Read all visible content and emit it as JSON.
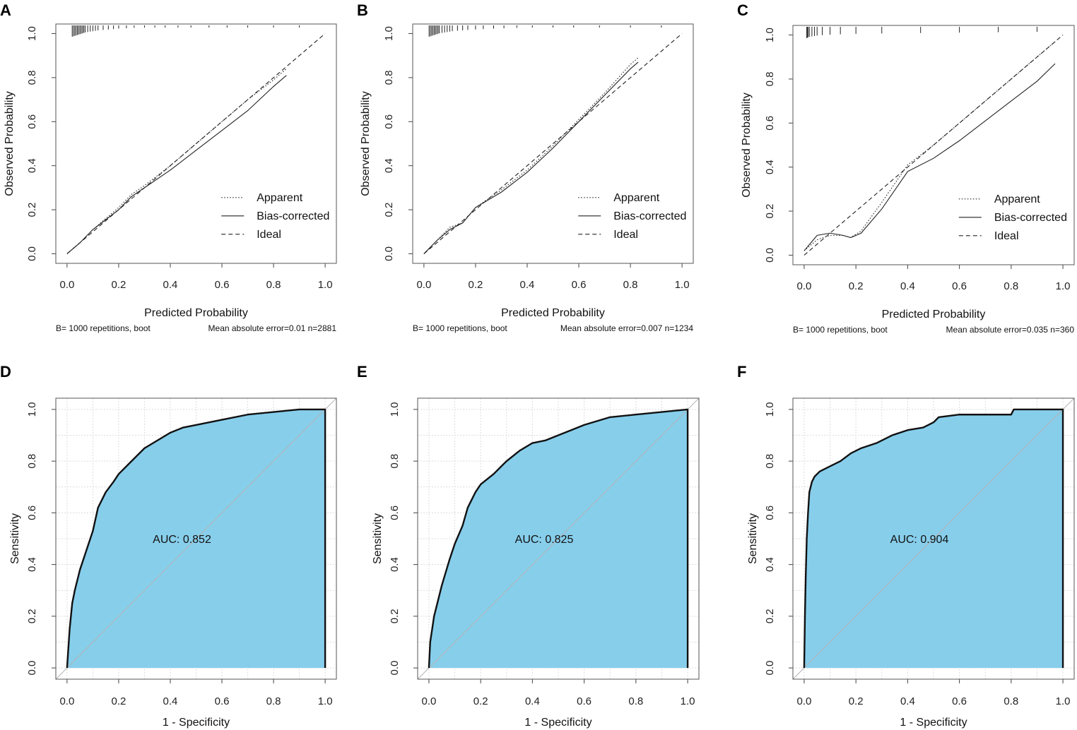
{
  "chart_data": [
    {
      "panel": "A",
      "type": "line",
      "xlabel": "Predicted Probability",
      "ylabel": "Observed Probability",
      "xlim": [
        0,
        1
      ],
      "ylim": [
        0,
        1
      ],
      "ticks": [
        "0.0",
        "0.2",
        "0.4",
        "0.6",
        "0.8",
        "1.0"
      ],
      "legend": [
        "Apparent",
        "Bias-corrected",
        "Ideal"
      ],
      "footer_left": "B= 1000 repetitions, boot",
      "footer_right": "Mean absolute error=0.01 n=2881",
      "series": [
        {
          "name": "Apparent",
          "style": "dotted",
          "x": [
            0,
            0.05,
            0.1,
            0.2,
            0.25,
            0.3,
            0.4,
            0.5,
            0.6,
            0.7,
            0.8,
            0.85
          ],
          "y": [
            0,
            0.05,
            0.11,
            0.21,
            0.27,
            0.31,
            0.4,
            0.5,
            0.6,
            0.7,
            0.79,
            0.84
          ]
        },
        {
          "name": "Bias-corrected",
          "style": "solid",
          "x": [
            0,
            0.05,
            0.1,
            0.2,
            0.25,
            0.3,
            0.4,
            0.5,
            0.6,
            0.7,
            0.8,
            0.85
          ],
          "y": [
            0,
            0.05,
            0.11,
            0.2,
            0.26,
            0.3,
            0.38,
            0.47,
            0.56,
            0.65,
            0.76,
            0.81
          ]
        },
        {
          "name": "Ideal",
          "style": "dashed",
          "x": [
            0,
            1
          ],
          "y": [
            0,
            1
          ]
        }
      ],
      "rug": [
        0.02,
        0.025,
        0.03,
        0.035,
        0.04,
        0.045,
        0.05,
        0.055,
        0.06,
        0.065,
        0.07,
        0.08,
        0.09,
        0.1,
        0.11,
        0.12,
        0.14,
        0.16,
        0.18,
        0.2,
        0.23,
        0.26,
        0.3,
        0.34,
        0.38,
        0.43,
        0.48,
        0.55,
        0.62,
        0.7,
        0.8,
        0.9
      ]
    },
    {
      "panel": "B",
      "type": "line",
      "xlabel": "Predicted Probability",
      "ylabel": "Observed Probability",
      "xlim": [
        0,
        1
      ],
      "ylim": [
        0,
        1
      ],
      "ticks": [
        "0.0",
        "0.2",
        "0.4",
        "0.6",
        "0.8",
        "1.0"
      ],
      "legend": [
        "Apparent",
        "Bias-corrected",
        "Ideal"
      ],
      "footer_left": "B= 1000 repetitions, boot",
      "footer_right": "Mean absolute error=0.007 n=1234",
      "series": [
        {
          "name": "Apparent",
          "style": "dotted",
          "x": [
            0,
            0.05,
            0.1,
            0.15,
            0.2,
            0.3,
            0.4,
            0.5,
            0.6,
            0.7,
            0.8,
            0.83
          ],
          "y": [
            0,
            0.06,
            0.12,
            0.14,
            0.21,
            0.29,
            0.38,
            0.49,
            0.61,
            0.73,
            0.86,
            0.89
          ]
        },
        {
          "name": "Bias-corrected",
          "style": "solid",
          "x": [
            0,
            0.05,
            0.1,
            0.15,
            0.2,
            0.3,
            0.4,
            0.5,
            0.6,
            0.7,
            0.8,
            0.83
          ],
          "y": [
            0,
            0.06,
            0.11,
            0.14,
            0.21,
            0.28,
            0.37,
            0.48,
            0.6,
            0.72,
            0.84,
            0.87
          ]
        },
        {
          "name": "Ideal",
          "style": "dashed",
          "x": [
            0,
            1
          ],
          "y": [
            0,
            1
          ]
        }
      ],
      "rug": [
        0.02,
        0.025,
        0.03,
        0.035,
        0.04,
        0.045,
        0.05,
        0.055,
        0.06,
        0.07,
        0.08,
        0.09,
        0.1,
        0.11,
        0.13,
        0.15,
        0.17,
        0.2,
        0.23,
        0.27,
        0.31,
        0.36,
        0.42,
        0.5,
        0.58,
        0.68,
        0.8,
        0.92
      ]
    },
    {
      "panel": "C",
      "type": "line",
      "xlabel": "Predicted Probability",
      "ylabel": "Observed Probability",
      "xlim": [
        0,
        1
      ],
      "ylim": [
        0,
        1
      ],
      "ticks": [
        "0.0",
        "0.2",
        "0.4",
        "0.6",
        "0.8",
        "1.0"
      ],
      "legend": [
        "Apparent",
        "Bias-corrected",
        "Ideal"
      ],
      "footer_left": "B= 1000 repetitions, boot",
      "footer_right": "Mean absolute error=0.035 n=360",
      "series": [
        {
          "name": "Apparent",
          "style": "dotted",
          "x": [
            0,
            0.05,
            0.1,
            0.15,
            0.18,
            0.22,
            0.3,
            0.4,
            0.5,
            0.6,
            0.7,
            0.8,
            0.9,
            0.97
          ],
          "y": [
            0.02,
            0.07,
            0.09,
            0.09,
            0.08,
            0.11,
            0.24,
            0.41,
            0.5,
            0.6,
            0.7,
            0.8,
            0.9,
            0.97
          ]
        },
        {
          "name": "Bias-corrected",
          "style": "solid",
          "x": [
            0,
            0.05,
            0.1,
            0.15,
            0.18,
            0.22,
            0.3,
            0.4,
            0.5,
            0.6,
            0.7,
            0.8,
            0.9,
            0.97
          ],
          "y": [
            0.02,
            0.09,
            0.1,
            0.09,
            0.08,
            0.1,
            0.21,
            0.38,
            0.44,
            0.52,
            0.61,
            0.7,
            0.79,
            0.87
          ]
        },
        {
          "name": "Ideal",
          "style": "dashed",
          "x": [
            0,
            1
          ],
          "y": [
            0,
            1
          ]
        }
      ],
      "rug": [
        0.01,
        0.012,
        0.015,
        0.02,
        0.03,
        0.04,
        0.05,
        0.07,
        0.1,
        0.14,
        0.2,
        0.3,
        0.45,
        0.6,
        0.75,
        0.9
      ]
    },
    {
      "panel": "D",
      "type": "area",
      "xlabel": "1 - Specificity",
      "ylabel": "Sensitivity",
      "xlim": [
        0,
        1
      ],
      "ylim": [
        0,
        1
      ],
      "ticks": [
        "0.0",
        "0.2",
        "0.4",
        "0.6",
        "0.8",
        "1.0"
      ],
      "auc_label": "AUC: 0.852",
      "fill_color": "#87ceeb",
      "series": [
        {
          "name": "ROC",
          "x": [
            0,
            0.01,
            0.02,
            0.03,
            0.05,
            0.07,
            0.1,
            0.12,
            0.15,
            0.18,
            0.2,
            0.25,
            0.3,
            0.35,
            0.4,
            0.45,
            0.5,
            0.6,
            0.7,
            0.8,
            0.9,
            1.0
          ],
          "y": [
            0,
            0.15,
            0.25,
            0.3,
            0.38,
            0.44,
            0.53,
            0.62,
            0.68,
            0.72,
            0.75,
            0.8,
            0.85,
            0.88,
            0.91,
            0.93,
            0.94,
            0.96,
            0.98,
            0.99,
            1.0,
            1.0
          ]
        }
      ]
    },
    {
      "panel": "E",
      "type": "area",
      "xlabel": "1 - Specificity",
      "ylabel": "Sensitivity",
      "xlim": [
        0,
        1
      ],
      "ylim": [
        0,
        1
      ],
      "ticks": [
        "0.0",
        "0.2",
        "0.4",
        "0.6",
        "0.8",
        "1.0"
      ],
      "auc_label": "AUC: 0.825",
      "fill_color": "#87ceeb",
      "series": [
        {
          "name": "ROC",
          "x": [
            0,
            0.005,
            0.02,
            0.05,
            0.08,
            0.1,
            0.13,
            0.15,
            0.18,
            0.2,
            0.25,
            0.3,
            0.35,
            0.4,
            0.45,
            0.5,
            0.55,
            0.6,
            0.7,
            0.8,
            0.9,
            1.0
          ],
          "y": [
            0,
            0.1,
            0.2,
            0.32,
            0.42,
            0.48,
            0.55,
            0.62,
            0.68,
            0.71,
            0.75,
            0.8,
            0.84,
            0.87,
            0.88,
            0.9,
            0.92,
            0.94,
            0.97,
            0.98,
            0.99,
            1.0
          ]
        }
      ]
    },
    {
      "panel": "F",
      "type": "area",
      "xlabel": "1 - Specificity",
      "ylabel": "Sensitivity",
      "xlim": [
        0,
        1
      ],
      "ylim": [
        0,
        1
      ],
      "ticks": [
        "0.0",
        "0.2",
        "0.4",
        "0.6",
        "0.8",
        "1.0"
      ],
      "auc_label": "AUC: 0.904",
      "fill_color": "#87ceeb",
      "series": [
        {
          "name": "ROC",
          "x": [
            0,
            0.003,
            0.006,
            0.01,
            0.015,
            0.02,
            0.03,
            0.04,
            0.06,
            0.1,
            0.14,
            0.18,
            0.22,
            0.28,
            0.34,
            0.4,
            0.46,
            0.5,
            0.52,
            0.6,
            0.7,
            0.8,
            0.81,
            1.0
          ],
          "y": [
            0,
            0.2,
            0.35,
            0.5,
            0.6,
            0.68,
            0.72,
            0.74,
            0.76,
            0.78,
            0.8,
            0.83,
            0.85,
            0.87,
            0.9,
            0.92,
            0.93,
            0.95,
            0.97,
            0.98,
            0.98,
            0.98,
            1.0,
            1.0
          ]
        }
      ]
    }
  ]
}
